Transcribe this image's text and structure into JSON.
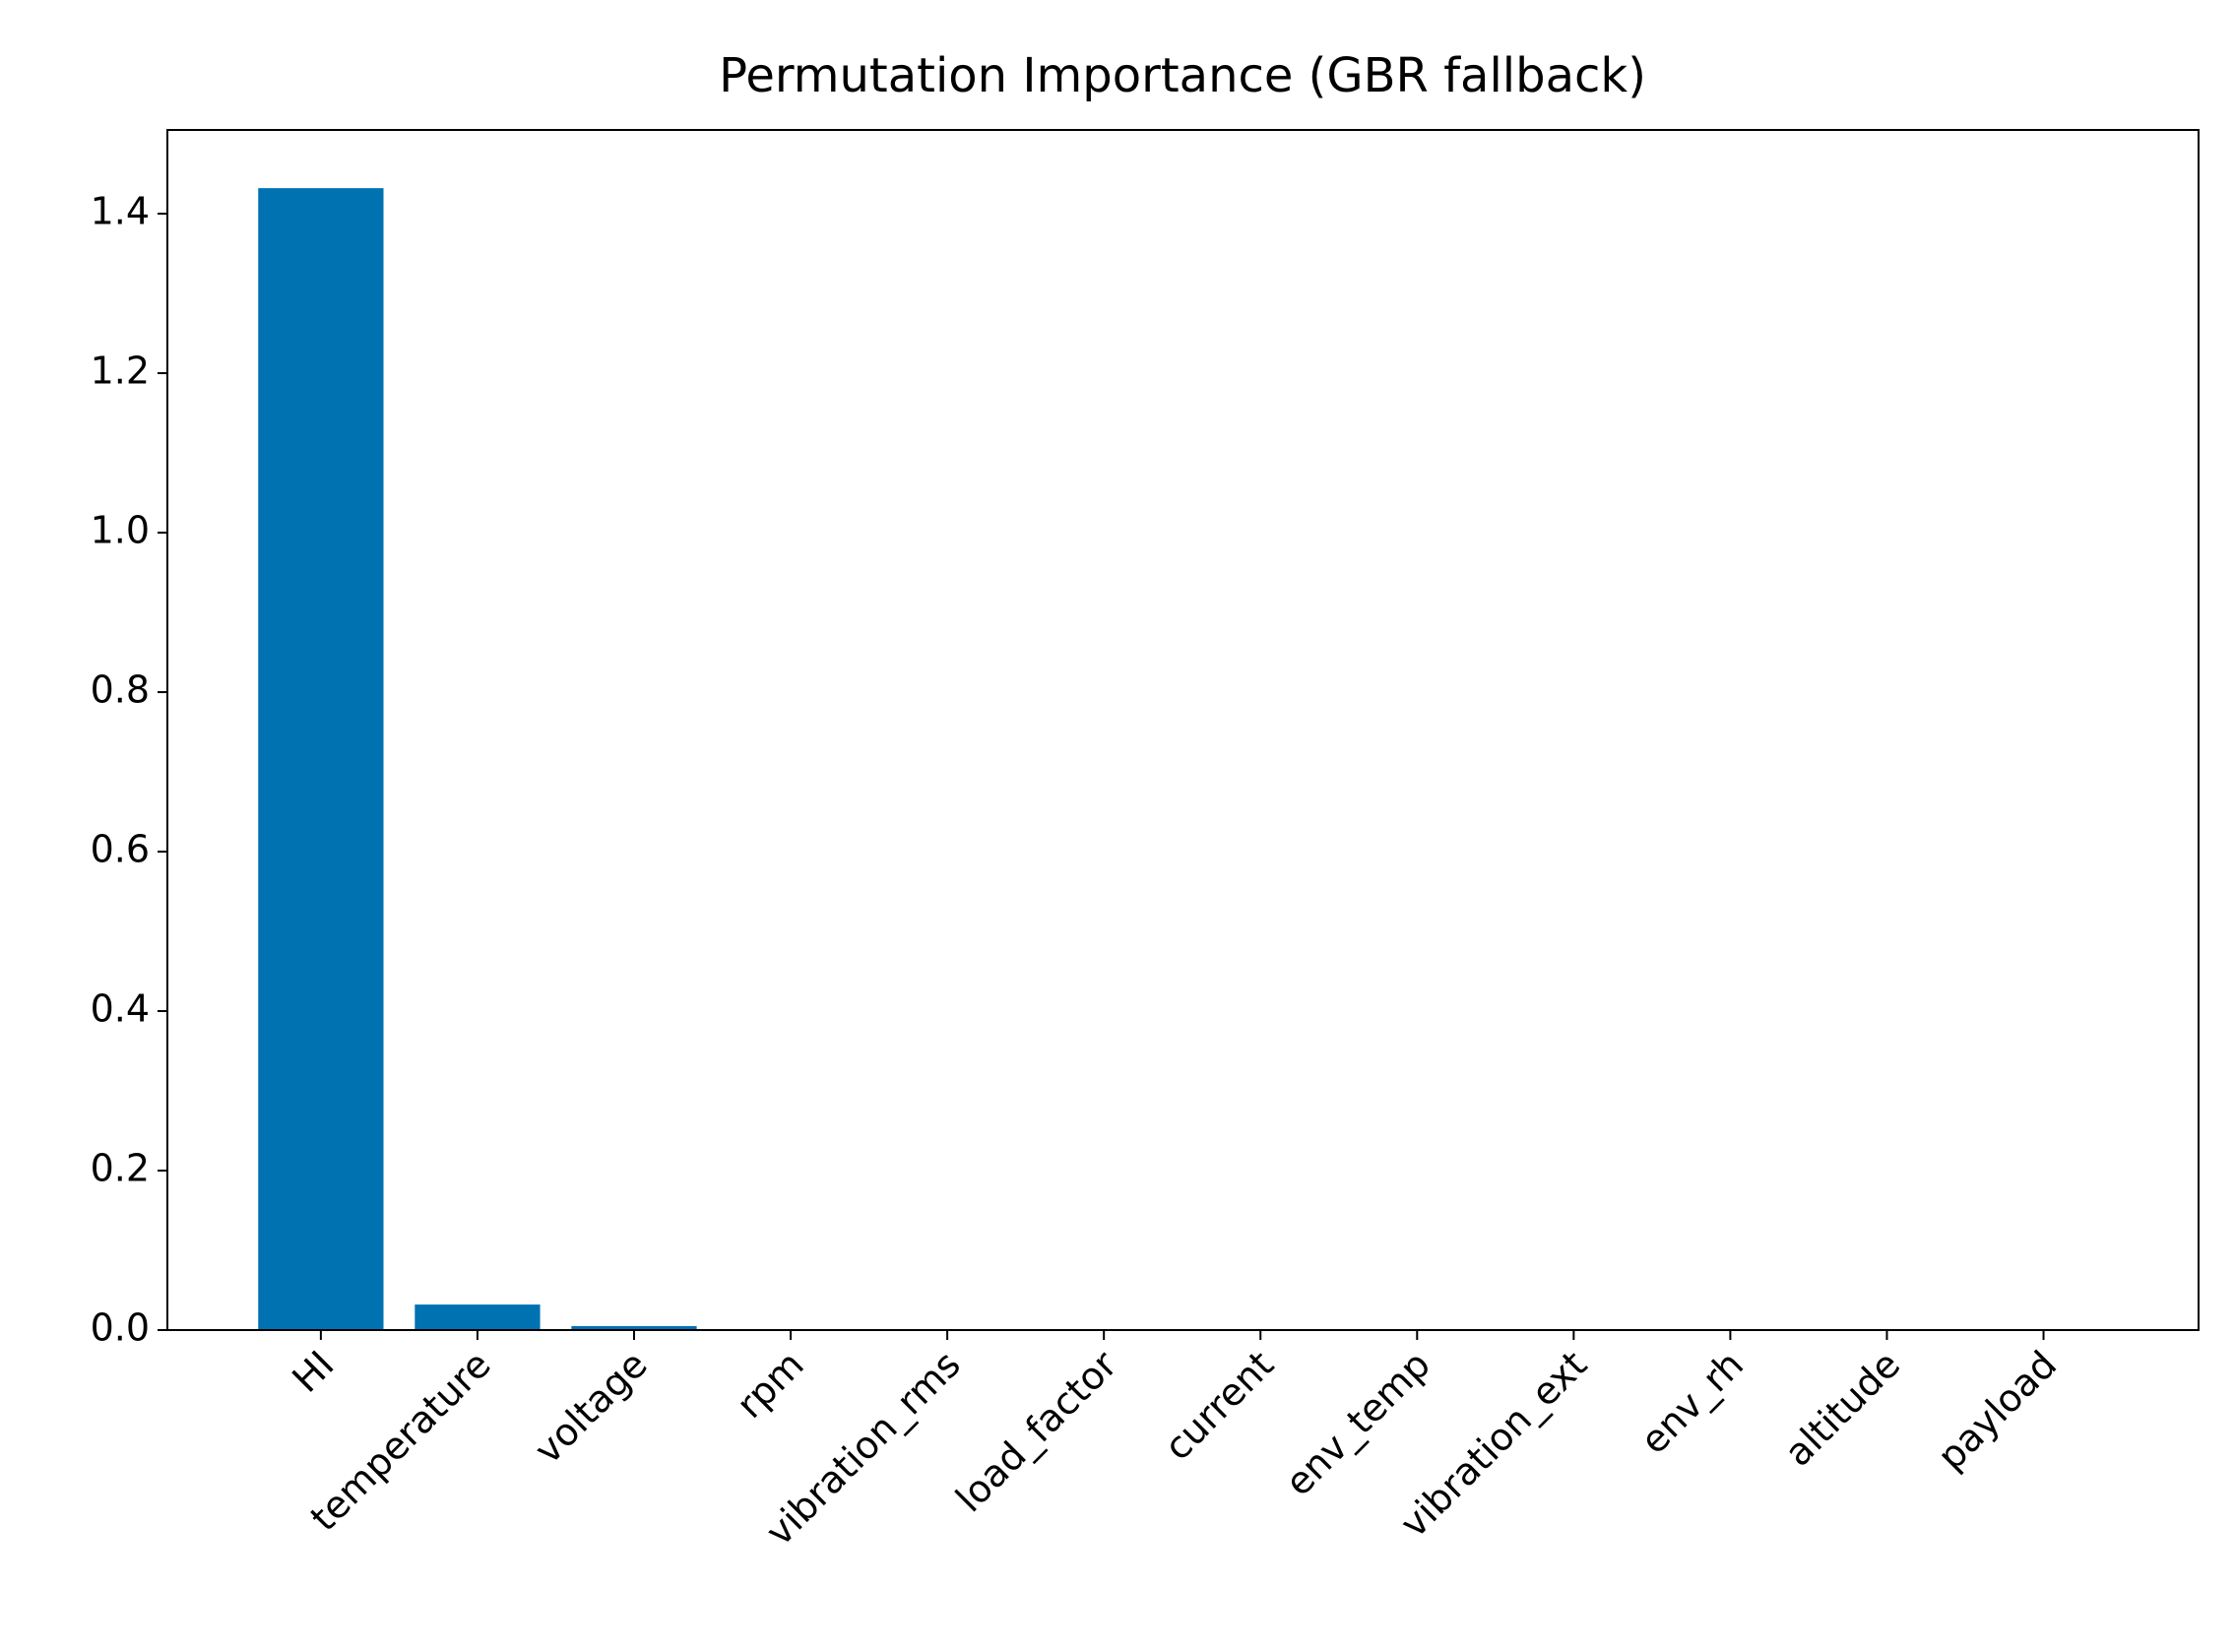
{
  "chart_data": {
    "type": "bar",
    "title": "Permutation Importance (GBR fallback)",
    "categories": [
      "HI",
      "temperature",
      "voltage",
      "rpm",
      "vibration_rms",
      "load_factor",
      "current",
      "env_temp",
      "vibration_ext",
      "env_rh",
      "altitude",
      "payload"
    ],
    "values": [
      1.432,
      0.032,
      0.005,
      0,
      0,
      0,
      0,
      0,
      0,
      0,
      0,
      0
    ],
    "color": "#0072b2",
    "ylim": [
      0,
      1.505
    ],
    "yticks": [
      {
        "value": 0,
        "label": "0.0"
      },
      {
        "value": 0.2,
        "label": "0.2"
      },
      {
        "value": 0.4,
        "label": "0.4"
      },
      {
        "value": 0.6,
        "label": "0.6"
      },
      {
        "value": 0.8,
        "label": "0.8"
      },
      {
        "value": 1.0,
        "label": "1.0"
      },
      {
        "value": 1.2,
        "label": "1.2"
      },
      {
        "value": 1.4,
        "label": "1.4"
      }
    ],
    "grid": false
  }
}
